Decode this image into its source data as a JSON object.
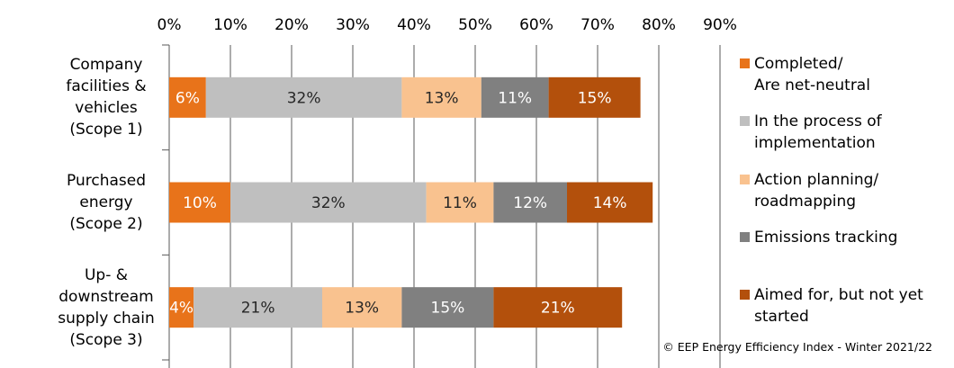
{
  "chart_data": {
    "type": "stacked-barh",
    "categories": [
      "Company\nfacilities &\nvehicles\n(Scope 1)",
      "Purchased\nenergy\n(Scope 2)",
      "Up- &\ndownstream\nsupply chain\n(Scope 3)"
    ],
    "series": [
      {
        "name": "Completed/\nAre net-neutral",
        "color": "#e8731a",
        "label_color": "#ffffff",
        "values": [
          6,
          10,
          4
        ],
        "value_labels": [
          "6%",
          "10%",
          "4%"
        ]
      },
      {
        "name": "In the process of\nimplementation",
        "color": "#bfbfbf",
        "label_color": "#262626",
        "values": [
          32,
          32,
          21
        ],
        "value_labels": [
          "32%",
          "32%",
          "21%"
        ]
      },
      {
        "name": "Action planning/\nroadmapping",
        "color": "#f9c28f",
        "label_color": "#262626",
        "values": [
          13,
          11,
          13
        ],
        "value_labels": [
          "13%",
          "11%",
          "13%"
        ]
      },
      {
        "name": "Emissions tracking",
        "color": "#808080",
        "label_color": "#ffffff",
        "values": [
          11,
          12,
          15
        ],
        "value_labels": [
          "11%",
          "12%",
          "15%"
        ]
      },
      {
        "name": "Aimed for, but not yet\nstarted",
        "color": "#b3500c",
        "label_color": "#ffffff",
        "values": [
          15,
          14,
          21
        ],
        "value_labels": [
          "15%",
          "14%",
          "21%"
        ]
      }
    ],
    "xlim": [
      0,
      90
    ],
    "xticks": [
      {
        "value": 0,
        "label": "0%"
      },
      {
        "value": 10,
        "label": "10%"
      },
      {
        "value": 20,
        "label": "20%"
      },
      {
        "value": 30,
        "label": "30%"
      },
      {
        "value": 40,
        "label": "40%"
      },
      {
        "value": 50,
        "label": "50%"
      },
      {
        "value": 60,
        "label": "60%"
      },
      {
        "value": 70,
        "label": "70%"
      },
      {
        "value": 80,
        "label": "80%"
      },
      {
        "value": 90,
        "label": "90%"
      }
    ],
    "grid": true,
    "legend": "right",
    "source": "© EEP Energy Efficiency Index - Winter 2021/22"
  }
}
